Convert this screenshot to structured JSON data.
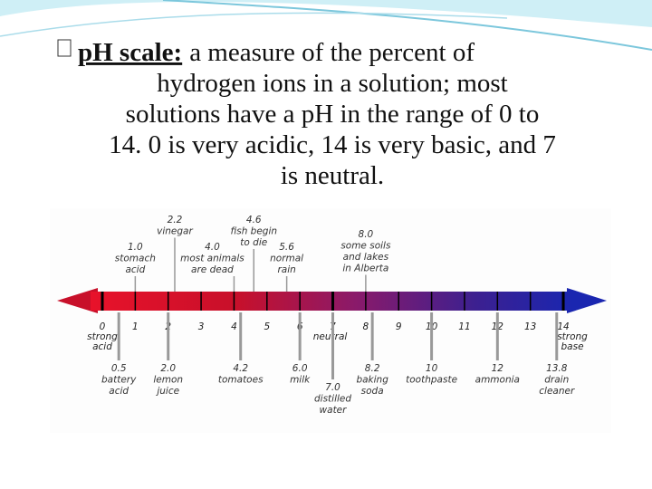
{
  "slide": {
    "term": "pH scale:",
    "lines": [
      "a measure of the percent of",
      "hydrogen ions in a solution; most",
      "solutions have a pH in the range of 0 to",
      "14. 0 is very acidic, 14 is very basic, and 7",
      "is neutral."
    ]
  },
  "diagram": {
    "scale": [
      "0",
      "1",
      "2",
      "3",
      "4",
      "5",
      "6",
      "7",
      "8",
      "9",
      "10",
      "11",
      "12",
      "13",
      "14"
    ],
    "scale_notes": [
      {
        "value": "0",
        "lines": [
          "strong",
          "acid"
        ]
      },
      {
        "value": "7",
        "lines": [
          "neutral"
        ]
      },
      {
        "value": "14",
        "lines": [
          "strong",
          "base"
        ]
      }
    ],
    "above": [
      {
        "value": "2.2",
        "lines": [
          "vinegar"
        ]
      },
      {
        "value": "1.0",
        "lines": [
          "stomach",
          "acid"
        ]
      },
      {
        "value": "4.0",
        "lines": [
          "most animals",
          "are dead"
        ]
      },
      {
        "value": "4.6",
        "lines": [
          "fish begin",
          "to die"
        ]
      },
      {
        "value": "5.6",
        "lines": [
          "normal",
          "rain"
        ]
      },
      {
        "value": "8.0",
        "lines": [
          "some soils",
          "and lakes",
          "in Alberta"
        ]
      }
    ],
    "below": [
      {
        "value": "0.5",
        "lines": [
          "battery",
          "acid"
        ]
      },
      {
        "value": "2.0",
        "lines": [
          "lemon",
          "juice"
        ]
      },
      {
        "value": "4.2",
        "lines": [
          "tomatoes"
        ]
      },
      {
        "value": "6.0",
        "lines": [
          "milk"
        ]
      },
      {
        "value": "7.0",
        "lines": [
          "distilled",
          "water"
        ]
      },
      {
        "value": "8.2",
        "lines": [
          "baking",
          "soda"
        ]
      },
      {
        "value": "10",
        "lines": [
          "toothpaste"
        ]
      },
      {
        "value": "12",
        "lines": [
          "ammonia"
        ]
      },
      {
        "value": "13.8",
        "lines": [
          "drain",
          "cleaner"
        ]
      }
    ]
  }
}
